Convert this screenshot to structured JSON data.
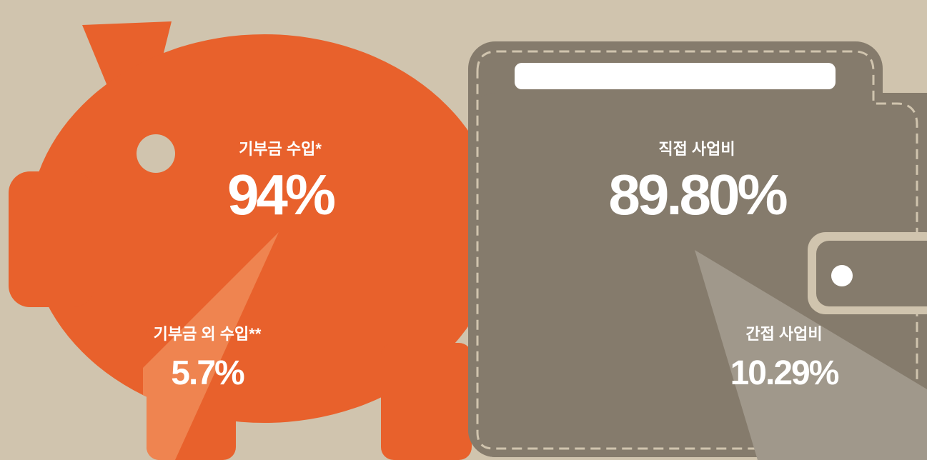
{
  "income": {
    "main": {
      "label": "기부금 수입*",
      "value": "94%"
    },
    "other": {
      "label": "기부금 외 수입**",
      "value": "5.7%"
    }
  },
  "expense": {
    "main": {
      "label": "직접 사업비",
      "value": "89.80%"
    },
    "other": {
      "label": "간접 사업비",
      "value": "10.29%"
    }
  }
}
